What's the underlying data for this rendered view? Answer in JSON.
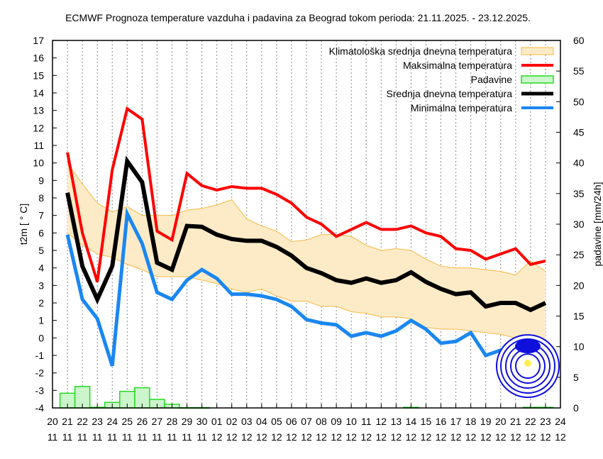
{
  "chart_data": {
    "type": "line",
    "title": "ECMWF Prognoza temperature vazduha i padavina za Beograd tokom perioda: 21.11.2025. - 23.12.2025.",
    "ylabel": "t2m [ ° C]",
    "y2label": "padavine [mm/24h]",
    "ylim": [
      -4,
      17
    ],
    "y2lim": [
      0,
      60
    ],
    "grid": "vertical dotted",
    "legend_position": "top-right",
    "x_ticks": [
      [
        "20",
        "11"
      ],
      [
        "21",
        "11"
      ],
      [
        "22",
        "11"
      ],
      [
        "23",
        "11"
      ],
      [
        "24",
        "11"
      ],
      [
        "25",
        "11"
      ],
      [
        "26",
        "11"
      ],
      [
        "27",
        "11"
      ],
      [
        "28",
        "11"
      ],
      [
        "29",
        "11"
      ],
      [
        "30",
        "11"
      ],
      [
        "01",
        "12"
      ],
      [
        "02",
        "12"
      ],
      [
        "03",
        "12"
      ],
      [
        "04",
        "12"
      ],
      [
        "05",
        "12"
      ],
      [
        "06",
        "12"
      ],
      [
        "07",
        "12"
      ],
      [
        "08",
        "12"
      ],
      [
        "09",
        "12"
      ],
      [
        "10",
        "12"
      ],
      [
        "11",
        "12"
      ],
      [
        "12",
        "12"
      ],
      [
        "13",
        "12"
      ],
      [
        "14",
        "12"
      ],
      [
        "15",
        "12"
      ],
      [
        "16",
        "12"
      ],
      [
        "17",
        "12"
      ],
      [
        "18",
        "12"
      ],
      [
        "19",
        "12"
      ],
      [
        "20",
        "12"
      ],
      [
        "21",
        "12"
      ],
      [
        "22",
        "12"
      ],
      [
        "23",
        "12"
      ],
      [
        "24",
        "12"
      ]
    ],
    "x_dates": [
      "21.11",
      "22.11",
      "23.11",
      "24.11",
      "25.11",
      "26.11",
      "27.11",
      "28.11",
      "29.11",
      "30.11",
      "01.12",
      "02.12",
      "03.12",
      "04.12",
      "05.12",
      "06.12",
      "07.12",
      "08.12",
      "09.12",
      "10.12",
      "11.12",
      "12.12",
      "13.12",
      "14.12",
      "15.12",
      "16.12",
      "17.12",
      "18.12",
      "19.12",
      "20.12",
      "21.12",
      "22.12",
      "23.12"
    ],
    "series": [
      {
        "name": "Klimatološka srednja dnevna temperatura",
        "kind": "band",
        "color": "#f5b942",
        "fill": "#fdebc8",
        "upper": [
          10.0,
          8.8,
          7.7,
          7.2,
          7.5,
          7.0,
          7.0,
          7.0,
          7.3,
          7.4,
          7.6,
          7.9,
          6.8,
          6.4,
          6.1,
          5.5,
          5.6,
          5.9,
          5.9,
          5.8,
          5.3,
          5.0,
          5.1,
          5.0,
          4.5,
          4.1,
          4.0,
          4.0,
          3.9,
          3.8,
          3.6,
          4.4,
          3.8
        ],
        "lower": [
          6.0,
          5.3,
          4.8,
          4.6,
          4.2,
          3.9,
          3.5,
          3.5,
          3.5,
          3.3,
          3.1,
          2.8,
          2.6,
          2.8,
          2.4,
          2.1,
          2.1,
          1.8,
          1.8,
          1.5,
          1.4,
          1.2,
          1.2,
          1.1,
          0.6,
          0.5,
          0.5,
          0.4,
          0.3,
          0.2,
          0.0,
          -0.2,
          -0.3
        ]
      },
      {
        "name": "Maksimalna temperatura",
        "kind": "line",
        "color": "#ff0000",
        "values": [
          10.6,
          6.0,
          3.2,
          9.6,
          13.1,
          12.5,
          6.1,
          5.6,
          9.4,
          8.7,
          8.45,
          8.65,
          8.55,
          8.55,
          8.2,
          7.7,
          6.9,
          6.5,
          5.8,
          6.2,
          6.6,
          6.2,
          6.2,
          6.4,
          6.0,
          5.8,
          5.1,
          5.0,
          4.5,
          4.8,
          5.1,
          4.2,
          4.4
        ]
      },
      {
        "name": "Padavine",
        "kind": "bar",
        "axis": "right",
        "color": "#22dd22",
        "fill": "#ccf5cc",
        "values": [
          2.4,
          3.5,
          0.1,
          0.9,
          2.7,
          3.3,
          1.4,
          0.6,
          0.05,
          0.05,
          0,
          0,
          0,
          0,
          0,
          0,
          0,
          0,
          0,
          0,
          0,
          0,
          0,
          0.1,
          0,
          0,
          0,
          0,
          0,
          0,
          0,
          0.1,
          0.1
        ]
      },
      {
        "name": "Srednja dnevna temperatura",
        "kind": "line",
        "color": "#000000",
        "values": [
          8.3,
          4.1,
          2.2,
          4.1,
          10.1,
          8.9,
          4.3,
          3.9,
          6.4,
          6.35,
          5.9,
          5.65,
          5.55,
          5.55,
          5.2,
          4.7,
          4.0,
          3.7,
          3.3,
          3.15,
          3.4,
          3.15,
          3.3,
          3.75,
          3.2,
          2.8,
          2.5,
          2.6,
          1.8,
          2.0,
          2.0,
          1.6,
          2.0
        ]
      },
      {
        "name": "Minimalna temperatura",
        "kind": "line",
        "color": "#1a87f0",
        "values": [
          5.9,
          2.2,
          1.1,
          -1.6,
          7.1,
          5.4,
          2.6,
          2.2,
          3.3,
          3.9,
          3.4,
          2.5,
          2.5,
          2.4,
          2.2,
          1.8,
          1.05,
          0.85,
          0.75,
          0.1,
          0.3,
          0.1,
          0.4,
          1.0,
          0.5,
          -0.3,
          -0.2,
          0.3,
          -1.0,
          -0.7,
          -0.7,
          -0.8,
          -0.5
        ]
      }
    ]
  }
}
